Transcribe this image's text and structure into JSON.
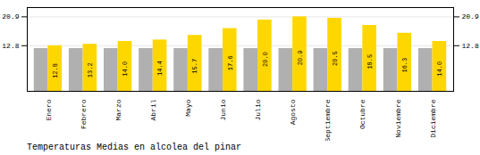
{
  "chart_data": {
    "type": "bar",
    "title": "Temperaturas Medias en alcolea del pinar",
    "categories": [
      "Enero",
      "Febrero",
      "Marzo",
      "Abril",
      "Mayo",
      "Junio",
      "Julio",
      "Agosto",
      "Septiembre",
      "Octubre",
      "Noviembre",
      "Diciembre"
    ],
    "series": [
      {
        "color": "#B0B0B0",
        "values": [
          12.0,
          12.0,
          12.0,
          12.0,
          12.0,
          12.0,
          12.0,
          12.0,
          12.0,
          12.0,
          12.0,
          12.0
        ]
      },
      {
        "color": "#FFD700",
        "values": [
          12.8,
          13.2,
          14.0,
          14.4,
          15.7,
          17.6,
          20.0,
          20.9,
          20.5,
          18.5,
          16.3,
          14.0
        ],
        "value_labels": [
          "12.8",
          "13.2",
          "14.0",
          "14.4",
          "15.7",
          "17.6",
          "20.0",
          "20.9",
          "20.5",
          "18.5",
          "16.3",
          "14.0"
        ],
        "data_labels": true
      }
    ],
    "ylim": [
      0,
      23.5
    ],
    "yticks": [
      12.8,
      20.9
    ],
    "grid": true
  }
}
